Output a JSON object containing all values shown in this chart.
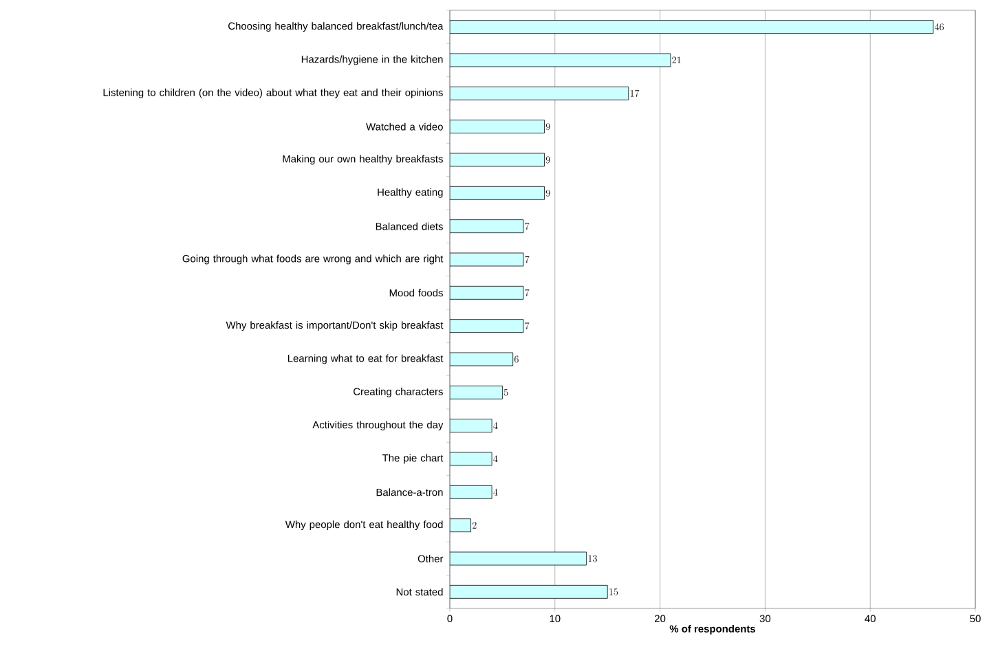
{
  "chart_data": {
    "type": "bar",
    "orientation": "horizontal",
    "xlabel": "% of respondents",
    "categories": [
      "Choosing healthy balanced breakfast/lunch/tea",
      "Hazards/hygiene in the kitchen",
      "Listening to children (on the video) about what they eat and their opinions",
      "Watched a video",
      "Making our own healthy breakfasts",
      "Healthy eating",
      "Balanced diets",
      "Going through what foods are wrong and which are right",
      "Mood foods",
      "Why breakfast is important/Don't skip breakfast",
      "Learning what to eat for breakfast",
      "Creating characters",
      "Activities throughout the day",
      "The pie chart",
      "Balance-a-tron",
      "Why people don't eat healthy food",
      "Other",
      "Not stated"
    ],
    "values": [
      46,
      21,
      17,
      9,
      9,
      9,
      7,
      7,
      7,
      7,
      6,
      5,
      4,
      4,
      4,
      2,
      13,
      15
    ],
    "color": "#ccffff",
    "xlim": [
      0,
      50
    ],
    "xticks": [
      0,
      10,
      20,
      30,
      40,
      50
    ],
    "grid": "x",
    "data_labels": true
  }
}
